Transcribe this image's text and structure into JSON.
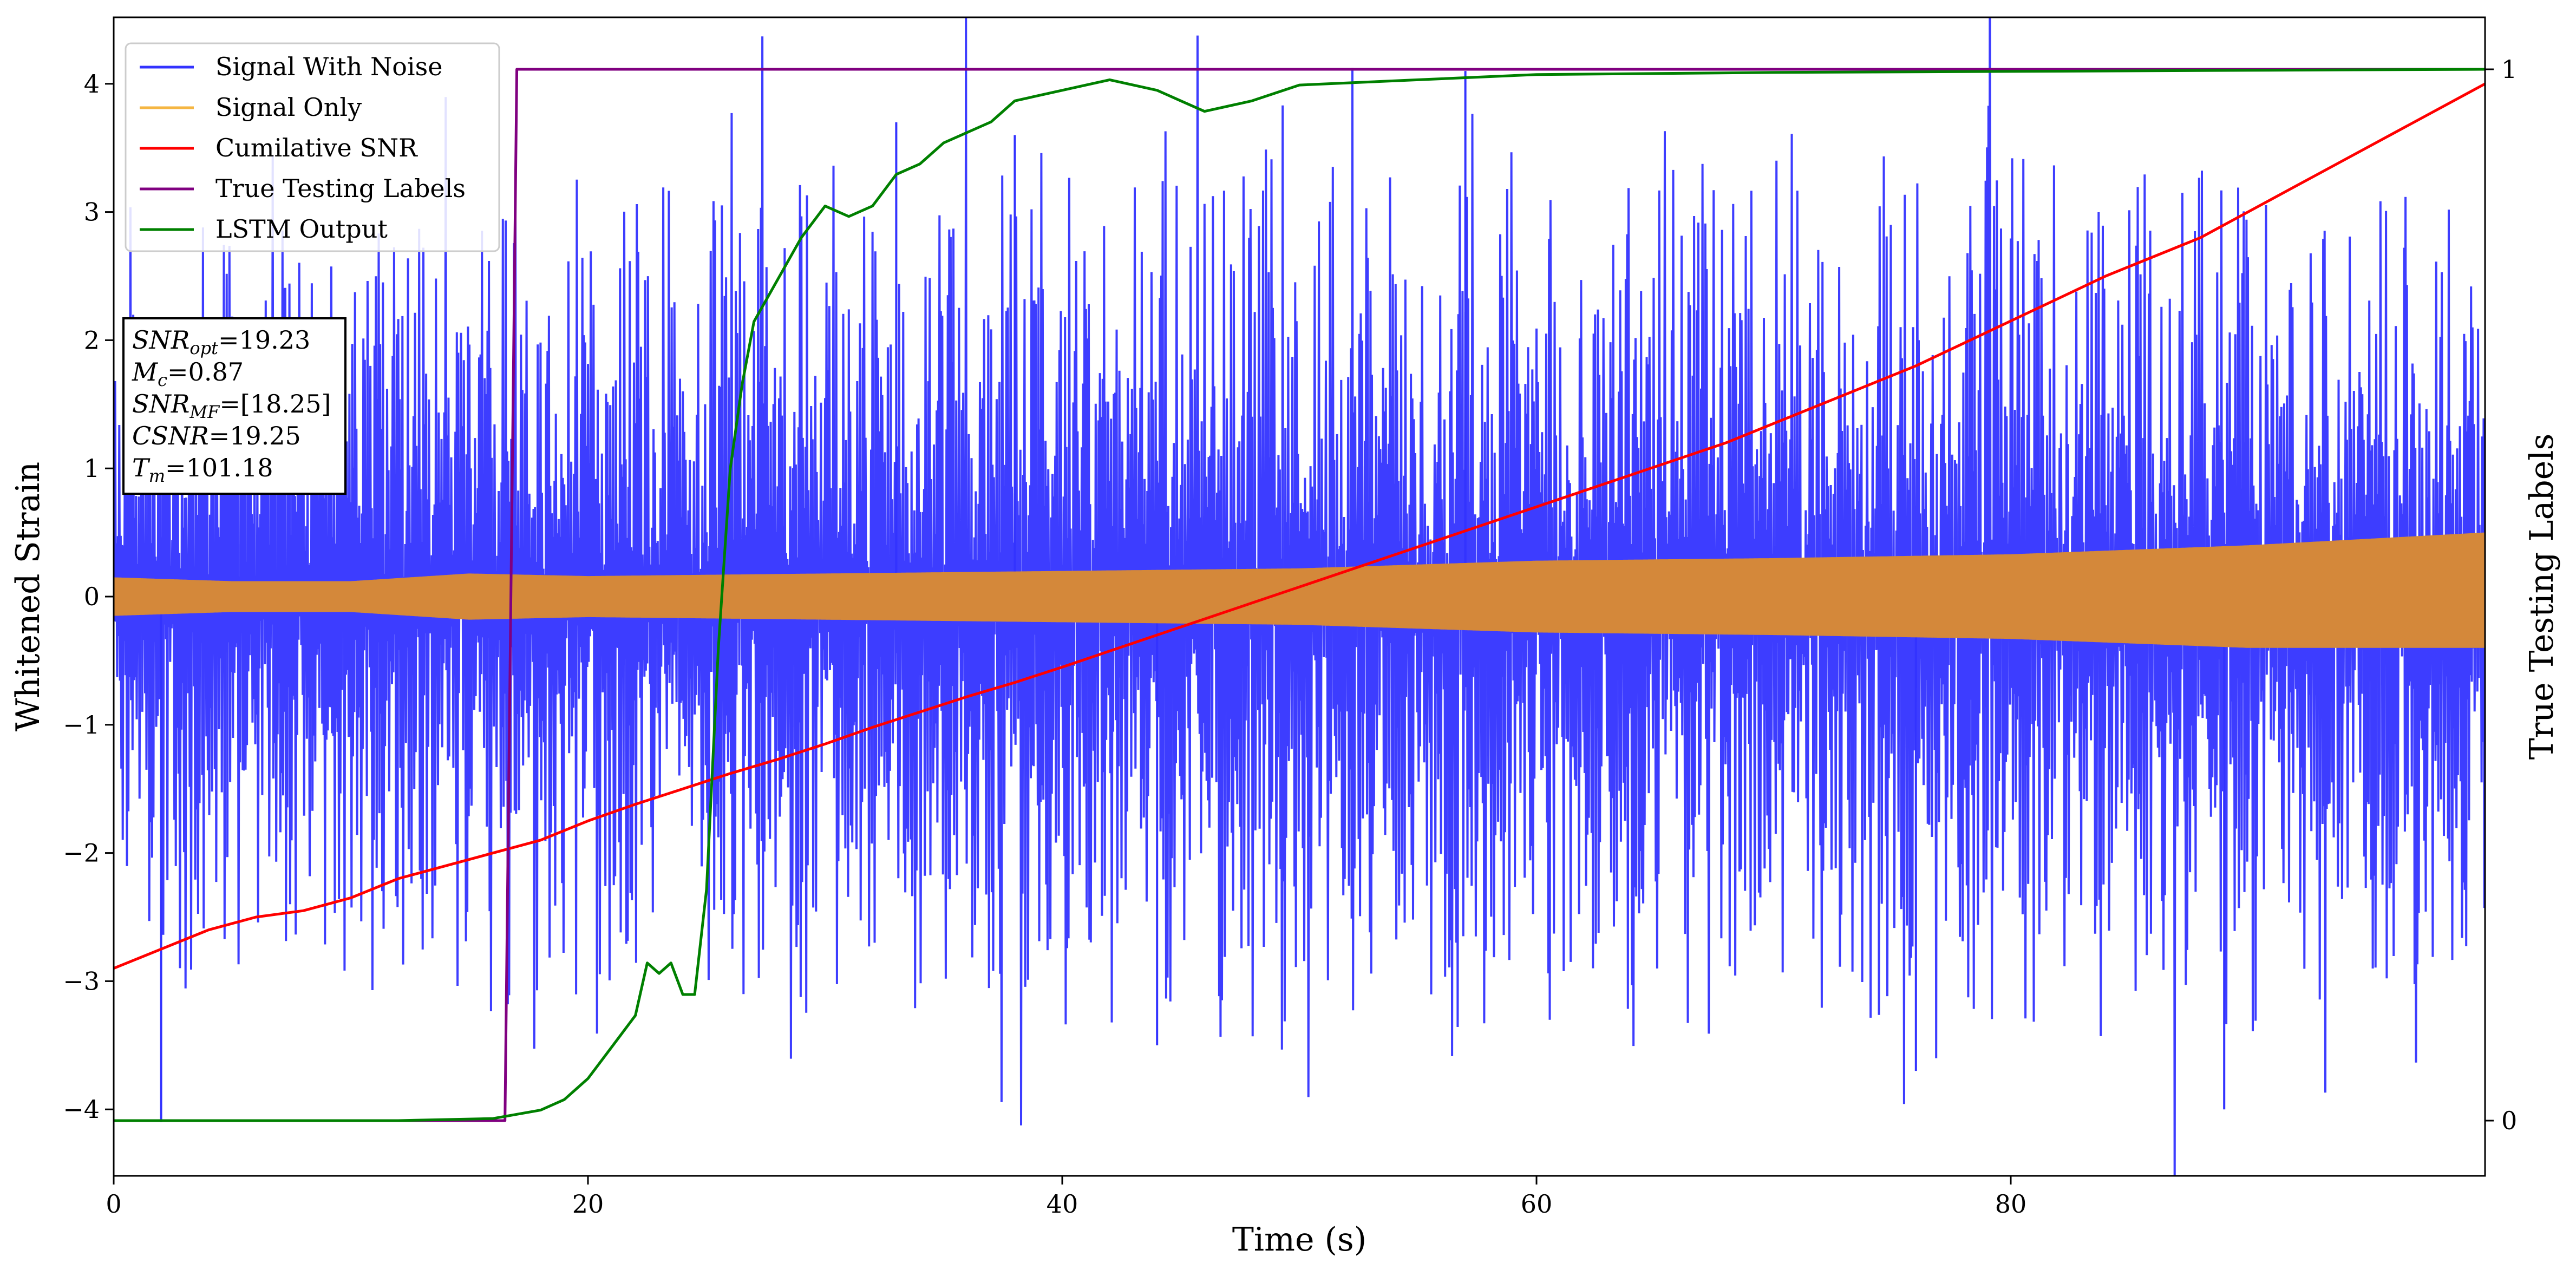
{
  "chart_data": {
    "type": "line",
    "xlabel": "Time (s)",
    "ylabel": "Whitened Strain",
    "y2label": "True Testing Labels",
    "xlim": [
      0,
      100
    ],
    "ylim": [
      -4.5,
      4.5
    ],
    "y2lim": [
      -0.05,
      1.05
    ],
    "xticks": [
      "0",
      "20",
      "40",
      "60",
      "80"
    ],
    "xtick_values": [
      0,
      20,
      40,
      60,
      80
    ],
    "yticks": [
      "−4",
      "−3",
      "−2",
      "−1",
      "0",
      "1",
      "2",
      "3",
      "4"
    ],
    "ytick_values": [
      -4,
      -3,
      -2,
      -1,
      0,
      1,
      2,
      3,
      4
    ],
    "y2ticks": [
      "0",
      "1"
    ],
    "y2tick_values": [
      0,
      1
    ],
    "grid": false,
    "legend_position": "top-left",
    "legend": [
      {
        "label": "Signal With Noise",
        "color": "#3333ff"
      },
      {
        "label": "Signal Only",
        "color": "#f5b642"
      },
      {
        "label": "Cumilative SNR",
        "color": "#ff0000"
      },
      {
        "label": "True Testing Labels",
        "color": "#800080"
      },
      {
        "label": "LSTM Output",
        "color": "#008000"
      }
    ],
    "annotation": {
      "lines": [
        {
          "symbol": "SNR",
          "sub": "opt",
          "value": "=19.23"
        },
        {
          "symbol": "M",
          "sub": "c",
          "value": "=0.87"
        },
        {
          "symbol": "SNR",
          "sub": "MF",
          "value": "=[18.25]"
        },
        {
          "symbol": "CSNR",
          "sub": "",
          "value": "=19.25"
        },
        {
          "symbol": "T",
          "sub": "m",
          "value": "=101.18"
        }
      ]
    },
    "series": [
      {
        "name": "Signal With Noise",
        "color": "#3333ff",
        "axis": "left",
        "envelope": {
          "x": [
            0,
            10,
            20,
            30,
            40,
            50,
            60,
            70,
            80,
            90,
            100
          ],
          "upper_typical": [
            2.0,
            2.0,
            2.2,
            2.3,
            2.3,
            2.3,
            2.3,
            2.3,
            2.3,
            2.3,
            2.0
          ],
          "lower_typical": [
            -2.0,
            -2.0,
            -2.2,
            -2.3,
            -2.3,
            -2.3,
            -2.3,
            -2.3,
            -2.3,
            -2.3,
            -2.0
          ]
        },
        "spikes": [
          {
            "x": 2.0,
            "y": -4.1
          },
          {
            "x": 57.0,
            "y": 4.1
          },
          {
            "x": 89.0,
            "y": -4.0
          },
          {
            "x": 76.0,
            "y": -3.7
          },
          {
            "x": 38.0,
            "y": 3.6
          },
          {
            "x": 44.0,
            "y": -3.5
          },
          {
            "x": 33.0,
            "y": 3.7
          }
        ]
      },
      {
        "name": "Signal Only",
        "color": "#d4883a",
        "axis": "left",
        "envelope": {
          "x": [
            0,
            5,
            10,
            15,
            20,
            30,
            40,
            50,
            60,
            70,
            80,
            90,
            100
          ],
          "upper": [
            0.15,
            0.12,
            0.12,
            0.18,
            0.16,
            0.18,
            0.2,
            0.22,
            0.28,
            0.3,
            0.33,
            0.4,
            0.5
          ],
          "lower": [
            -0.15,
            -0.12,
            -0.12,
            -0.18,
            -0.16,
            -0.18,
            -0.2,
            -0.22,
            -0.28,
            -0.3,
            -0.33,
            -0.4,
            -0.4
          ]
        }
      },
      {
        "name": "Cumilative SNR",
        "color": "#ff0000",
        "axis": "left",
        "x": [
          0,
          2,
          4,
          6,
          8,
          10,
          12,
          14,
          16,
          18,
          20,
          22,
          24,
          26,
          28,
          30,
          32,
          34,
          36,
          38,
          40,
          44,
          48,
          52,
          56,
          60,
          64,
          68,
          72,
          76,
          80,
          84,
          88,
          92,
          96,
          100
        ],
        "y": [
          -2.9,
          -2.75,
          -2.6,
          -2.5,
          -2.45,
          -2.35,
          -2.2,
          -2.1,
          -2.0,
          -1.9,
          -1.75,
          -1.62,
          -1.5,
          -1.38,
          -1.27,
          -1.15,
          -1.02,
          -0.9,
          -0.78,
          -0.67,
          -0.55,
          -0.3,
          -0.05,
          0.2,
          0.45,
          0.7,
          0.95,
          1.2,
          1.5,
          1.8,
          2.15,
          2.5,
          2.8,
          3.2,
          3.6,
          4.0
        ]
      },
      {
        "name": "True Testing Labels",
        "color": "#800080",
        "axis": "right",
        "x": [
          0,
          16.5,
          17.0,
          100
        ],
        "y": [
          0,
          0,
          1,
          1
        ]
      },
      {
        "name": "LSTM Output",
        "color": "#008000",
        "axis": "right",
        "x": [
          0,
          12,
          16,
          18,
          19,
          20,
          21,
          22,
          22.5,
          23,
          23.5,
          24,
          24.5,
          25,
          25.5,
          26,
          26.5,
          27,
          28,
          29,
          30,
          31,
          32,
          33,
          34,
          35,
          36,
          37,
          38,
          40,
          42,
          44,
          45,
          46,
          47,
          48,
          50,
          55,
          60,
          70,
          80,
          90,
          100
        ],
        "y": [
          0,
          0,
          0.002,
          0.01,
          0.02,
          0.04,
          0.07,
          0.1,
          0.15,
          0.14,
          0.15,
          0.12,
          0.12,
          0.22,
          0.45,
          0.62,
          0.7,
          0.76,
          0.8,
          0.84,
          0.87,
          0.86,
          0.87,
          0.9,
          0.91,
          0.93,
          0.94,
          0.95,
          0.97,
          0.98,
          0.99,
          0.98,
          0.97,
          0.96,
          0.965,
          0.97,
          0.985,
          0.99,
          0.995,
          0.997,
          0.998,
          0.999,
          1.0
        ]
      }
    ]
  }
}
